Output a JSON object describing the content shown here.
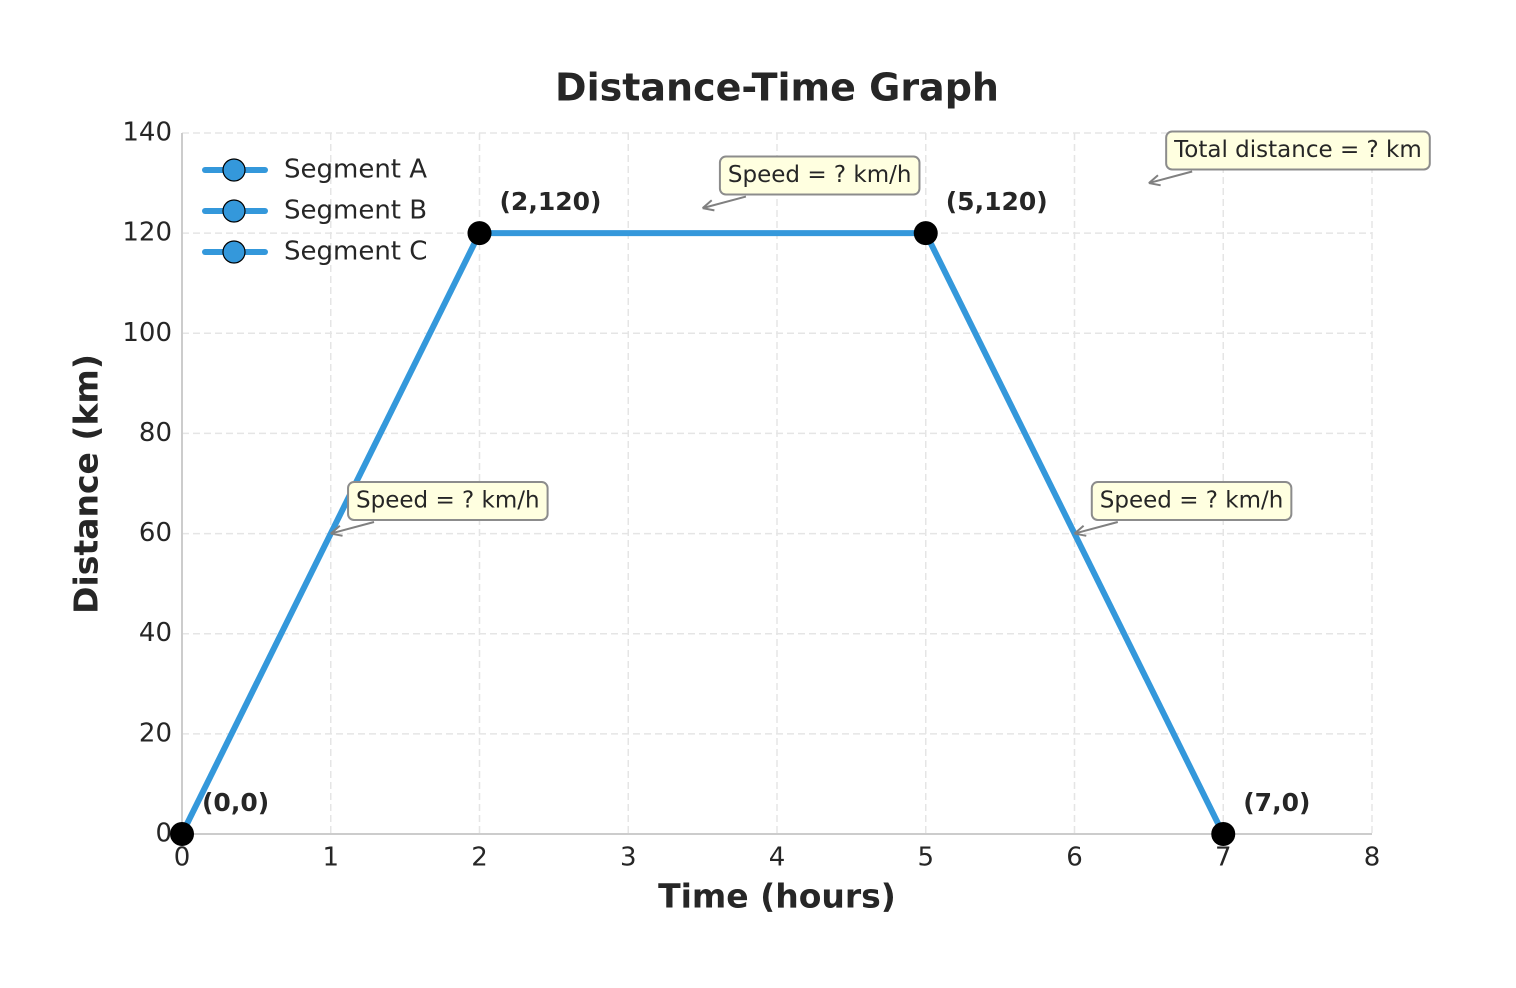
{
  "chart_data": {
    "type": "line",
    "title": "Distance-Time Graph",
    "x_label": "Time (hours)",
    "y_label": "Distance (km)",
    "xlim": [
      0,
      8
    ],
    "ylim": [
      0,
      140
    ],
    "xticks": [
      0,
      1,
      2,
      3,
      4,
      5,
      6,
      7,
      8
    ],
    "yticks": [
      0,
      20,
      40,
      60,
      80,
      100,
      120,
      140
    ],
    "grid": true,
    "legend": "upper left",
    "series": [
      {
        "name": "Segment A",
        "color": "#3498db",
        "x": [
          0,
          2
        ],
        "values": [
          0,
          120
        ]
      },
      {
        "name": "Segment B",
        "color": "#3498db",
        "x": [
          2,
          5
        ],
        "values": [
          120,
          120
        ]
      },
      {
        "name": "Segment C",
        "color": "#3498db",
        "x": [
          5,
          7
        ],
        "values": [
          120,
          0
        ]
      }
    ],
    "points": {
      "color": "#000000",
      "x": [
        0,
        2,
        5,
        7
      ],
      "y": [
        0,
        120,
        120,
        0
      ],
      "labels": [
        "(0,0)",
        "(2,120)",
        "(5,120)",
        "(7,0)"
      ]
    },
    "annotations": [
      {
        "text": "Speed = ? km/h",
        "xy": [
          1,
          60
        ],
        "xytext": [
          1.17,
          66.5
        ]
      },
      {
        "text": "Speed = ? km/h",
        "xy": [
          3.5,
          125
        ],
        "xytext": [
          3.67,
          131.5
        ]
      },
      {
        "text": "Speed = ? km/h",
        "xy": [
          6,
          60
        ],
        "xytext": [
          6.17,
          66.5
        ]
      },
      {
        "text": "Total distance = ? km",
        "xy": [
          6.5,
          130
        ],
        "xytext": [
          6.67,
          136.5
        ]
      }
    ]
  }
}
